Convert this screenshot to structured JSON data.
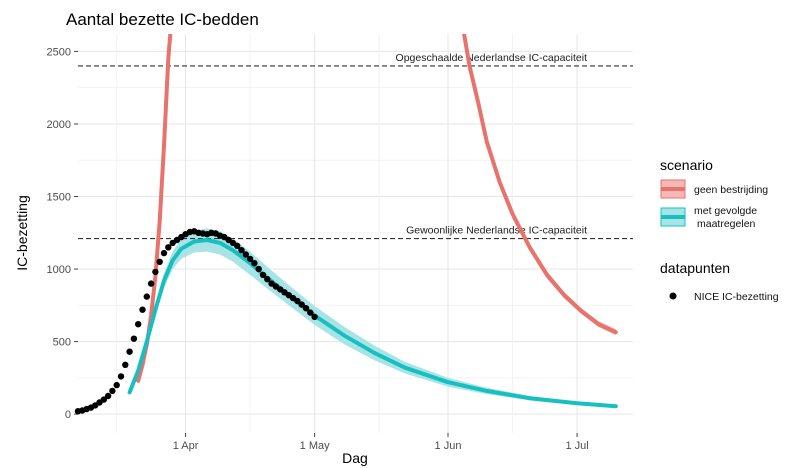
{
  "chart_data": {
    "type": "line",
    "title": "Aantal bezette IC-bedden",
    "xlabel": "Dag",
    "ylabel": "IC-bezetting",
    "x_ticks": [
      {
        "date": "2020-04-01",
        "label": "1 Apr"
      },
      {
        "date": "2020-05-01",
        "label": "1 May"
      },
      {
        "date": "2020-06-01",
        "label": "1 Jun"
      },
      {
        "date": "2020-07-01",
        "label": "1 Jul"
      }
    ],
    "xlim": [
      "2020-03-07",
      "2020-07-14"
    ],
    "y_ticks": [
      0,
      500,
      1000,
      1500,
      2000,
      2500
    ],
    "ylim": [
      -130,
      2620
    ],
    "grid": true,
    "reference_lines": [
      {
        "y": 2400,
        "label": "Opgeschaalde Nederlandse IC-capaciteit"
      },
      {
        "y": 1210,
        "label": "Gewoonlijke Nederlandse IC-capaciteit"
      }
    ],
    "legend": {
      "position": "right",
      "scenario_title": "scenario",
      "scenario_items": [
        {
          "label": "geen bestrijding",
          "color": "#e8726c",
          "band_color": "#f5b8b4"
        },
        {
          "label": "met gevolgde",
          "label2": "maatregelen",
          "color": "#18bfc0",
          "band_color": "#a8e4e5"
        }
      ],
      "points_title": "datapunten",
      "points_label": "NICE IC-bezetting",
      "points_color": "#000000"
    },
    "series": [
      {
        "name": "geen bestrijding",
        "color": "#e8726c",
        "band_color": "#f5b8b4",
        "segments": [
          [
            {
              "x": "2020-03-21",
              "y": 230,
              "lo": 215,
              "hi": 245
            },
            {
              "x": "2020-03-22",
              "y": 340,
              "lo": 320,
              "hi": 360
            },
            {
              "x": "2020-03-23",
              "y": 480,
              "lo": 455,
              "hi": 505
            },
            {
              "x": "2020-03-24",
              "y": 680,
              "lo": 650,
              "hi": 710
            },
            {
              "x": "2020-03-25",
              "y": 950,
              "lo": 915,
              "hi": 985
            },
            {
              "x": "2020-03-26",
              "y": 1330,
              "lo": 1290,
              "hi": 1370
            },
            {
              "x": "2020-03-27",
              "y": 1850,
              "lo": 1800,
              "hi": 1900
            },
            {
              "x": "2020-03-28",
              "y": 2450,
              "lo": 2400,
              "hi": 2500
            },
            {
              "x": "2020-03-29",
              "y": 3100,
              "lo": 3050,
              "hi": 3150
            }
          ],
          [
            {
              "x": "2020-06-04",
              "y": 2750,
              "lo": 2700,
              "hi": 2800
            },
            {
              "x": "2020-06-06",
              "y": 2400,
              "lo": 2360,
              "hi": 2440
            },
            {
              "x": "2020-06-08",
              "y": 2150,
              "lo": 2110,
              "hi": 2190
            },
            {
              "x": "2020-06-10",
              "y": 1880,
              "lo": 1845,
              "hi": 1915
            },
            {
              "x": "2020-06-13",
              "y": 1600,
              "lo": 1570,
              "hi": 1630
            },
            {
              "x": "2020-06-16",
              "y": 1380,
              "lo": 1350,
              "hi": 1410
            },
            {
              "x": "2020-06-20",
              "y": 1150,
              "lo": 1125,
              "hi": 1175
            },
            {
              "x": "2020-06-24",
              "y": 960,
              "lo": 935,
              "hi": 985
            },
            {
              "x": "2020-06-28",
              "y": 820,
              "lo": 798,
              "hi": 842
            },
            {
              "x": "2020-07-02",
              "y": 710,
              "lo": 690,
              "hi": 730
            },
            {
              "x": "2020-07-06",
              "y": 620,
              "lo": 600,
              "hi": 640
            },
            {
              "x": "2020-07-10",
              "y": 565,
              "lo": 545,
              "hi": 585
            }
          ]
        ]
      },
      {
        "name": "met gevolgde maatregelen",
        "color": "#18bfc0",
        "band_color": "#a8e4e5",
        "segments": [
          [
            {
              "x": "2020-03-19",
              "y": 150,
              "lo": 140,
              "hi": 160
            },
            {
              "x": "2020-03-21",
              "y": 300,
              "lo": 280,
              "hi": 320
            },
            {
              "x": "2020-03-23",
              "y": 500,
              "lo": 470,
              "hi": 530
            },
            {
              "x": "2020-03-25",
              "y": 720,
              "lo": 680,
              "hi": 760
            },
            {
              "x": "2020-03-27",
              "y": 920,
              "lo": 870,
              "hi": 970
            },
            {
              "x": "2020-03-29",
              "y": 1060,
              "lo": 1000,
              "hi": 1120
            },
            {
              "x": "2020-03-31",
              "y": 1140,
              "lo": 1070,
              "hi": 1210
            },
            {
              "x": "2020-04-03",
              "y": 1190,
              "lo": 1115,
              "hi": 1265
            },
            {
              "x": "2020-04-06",
              "y": 1200,
              "lo": 1120,
              "hi": 1280
            },
            {
              "x": "2020-04-09",
              "y": 1180,
              "lo": 1100,
              "hi": 1260
            },
            {
              "x": "2020-04-12",
              "y": 1130,
              "lo": 1050,
              "hi": 1210
            },
            {
              "x": "2020-04-16",
              "y": 1040,
              "lo": 960,
              "hi": 1120
            },
            {
              "x": "2020-04-20",
              "y": 940,
              "lo": 865,
              "hi": 1015
            },
            {
              "x": "2020-04-25",
              "y": 820,
              "lo": 750,
              "hi": 890
            },
            {
              "x": "2020-05-01",
              "y": 680,
              "lo": 615,
              "hi": 745
            },
            {
              "x": "2020-05-08",
              "y": 540,
              "lo": 480,
              "hi": 600
            },
            {
              "x": "2020-05-15",
              "y": 420,
              "lo": 370,
              "hi": 470
            },
            {
              "x": "2020-05-22",
              "y": 320,
              "lo": 280,
              "hi": 360
            },
            {
              "x": "2020-06-01",
              "y": 220,
              "lo": 190,
              "hi": 250
            },
            {
              "x": "2020-06-10",
              "y": 160,
              "lo": 138,
              "hi": 182
            },
            {
              "x": "2020-06-20",
              "y": 110,
              "lo": 95,
              "hi": 125
            },
            {
              "x": "2020-07-01",
              "y": 75,
              "lo": 65,
              "hi": 85
            },
            {
              "x": "2020-07-10",
              "y": 55,
              "lo": 48,
              "hi": 62
            }
          ]
        ]
      }
    ],
    "points": {
      "name": "NICE IC-bezetting",
      "x": [
        "2020-03-07",
        "2020-03-08",
        "2020-03-09",
        "2020-03-10",
        "2020-03-11",
        "2020-03-12",
        "2020-03-13",
        "2020-03-14",
        "2020-03-15",
        "2020-03-16",
        "2020-03-17",
        "2020-03-18",
        "2020-03-19",
        "2020-03-20",
        "2020-03-21",
        "2020-03-22",
        "2020-03-23",
        "2020-03-24",
        "2020-03-25",
        "2020-03-26",
        "2020-03-27",
        "2020-03-28",
        "2020-03-29",
        "2020-03-30",
        "2020-03-31",
        "2020-04-01",
        "2020-04-02",
        "2020-04-03",
        "2020-04-04",
        "2020-04-05",
        "2020-04-06",
        "2020-04-07",
        "2020-04-08",
        "2020-04-09",
        "2020-04-10",
        "2020-04-11",
        "2020-04-12",
        "2020-04-13",
        "2020-04-14",
        "2020-04-15",
        "2020-04-16",
        "2020-04-17",
        "2020-04-18",
        "2020-04-19",
        "2020-04-20",
        "2020-04-21",
        "2020-04-22",
        "2020-04-23",
        "2020-04-24",
        "2020-04-25",
        "2020-04-26",
        "2020-04-27",
        "2020-04-28",
        "2020-04-29",
        "2020-04-30",
        "2020-05-01"
      ],
      "y": [
        20,
        25,
        35,
        45,
        60,
        80,
        100,
        125,
        160,
        200,
        260,
        340,
        430,
        520,
        620,
        720,
        810,
        900,
        980,
        1050,
        1110,
        1150,
        1180,
        1200,
        1220,
        1240,
        1255,
        1260,
        1250,
        1245,
        1240,
        1250,
        1245,
        1230,
        1220,
        1200,
        1180,
        1160,
        1130,
        1100,
        1070,
        1040,
        1000,
        960,
        930,
        900,
        880,
        860,
        840,
        820,
        800,
        780,
        755,
        730,
        700,
        670
      ]
    }
  }
}
